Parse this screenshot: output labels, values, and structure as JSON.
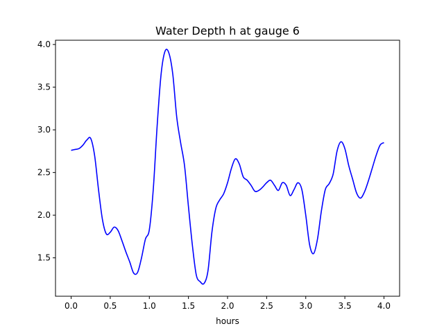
{
  "chart_data": {
    "type": "line",
    "title": "Water Depth h at gauge 6",
    "xlabel": "hours",
    "ylabel": "",
    "xlim": [
      -0.2,
      4.2
    ],
    "ylim": [
      1.05,
      4.05
    ],
    "xticks": [
      0.0,
      0.5,
      1.0,
      1.5,
      2.0,
      2.5,
      3.0,
      3.5,
      4.0
    ],
    "xtick_labels": [
      "0.0",
      "0.5",
      "1.0",
      "1.5",
      "2.0",
      "2.5",
      "3.0",
      "3.5",
      "4.0"
    ],
    "yticks": [
      1.5,
      2.0,
      2.5,
      3.0,
      3.5,
      4.0
    ],
    "ytick_labels": [
      "1.5",
      "2.0",
      "2.5",
      "3.0",
      "3.5",
      "4.0"
    ],
    "grid": false,
    "series": [
      {
        "color": "#0000ff",
        "x": [
          0.0,
          0.05,
          0.1,
          0.15,
          0.2,
          0.25,
          0.3,
          0.35,
          0.4,
          0.45,
          0.5,
          0.55,
          0.6,
          0.65,
          0.7,
          0.75,
          0.8,
          0.85,
          0.9,
          0.95,
          1.0,
          1.05,
          1.1,
          1.15,
          1.2,
          1.25,
          1.3,
          1.35,
          1.4,
          1.45,
          1.5,
          1.55,
          1.6,
          1.65,
          1.7,
          1.75,
          1.8,
          1.85,
          1.9,
          1.95,
          2.0,
          2.05,
          2.1,
          2.15,
          2.2,
          2.25,
          2.3,
          2.35,
          2.4,
          2.45,
          2.5,
          2.55,
          2.6,
          2.65,
          2.7,
          2.75,
          2.8,
          2.85,
          2.9,
          2.95,
          3.0,
          3.05,
          3.1,
          3.15,
          3.2,
          3.25,
          3.3,
          3.35,
          3.4,
          3.45,
          3.5,
          3.55,
          3.6,
          3.65,
          3.7,
          3.75,
          3.8,
          3.85,
          3.9,
          3.95,
          4.0
        ],
        "y": [
          2.76,
          2.77,
          2.78,
          2.82,
          2.88,
          2.9,
          2.7,
          2.3,
          1.95,
          1.78,
          1.8,
          1.86,
          1.82,
          1.7,
          1.57,
          1.45,
          1.32,
          1.33,
          1.5,
          1.72,
          1.83,
          2.3,
          3.05,
          3.65,
          3.92,
          3.9,
          3.65,
          3.15,
          2.85,
          2.58,
          2.1,
          1.65,
          1.3,
          1.22,
          1.2,
          1.35,
          1.8,
          2.08,
          2.18,
          2.25,
          2.38,
          2.55,
          2.66,
          2.6,
          2.45,
          2.41,
          2.35,
          2.28,
          2.29,
          2.33,
          2.38,
          2.41,
          2.35,
          2.29,
          2.38,
          2.35,
          2.23,
          2.3,
          2.38,
          2.3,
          2.0,
          1.65,
          1.55,
          1.72,
          2.05,
          2.3,
          2.37,
          2.48,
          2.75,
          2.86,
          2.78,
          2.58,
          2.42,
          2.26,
          2.2,
          2.27,
          2.4,
          2.55,
          2.7,
          2.82,
          2.85
        ]
      }
    ]
  }
}
